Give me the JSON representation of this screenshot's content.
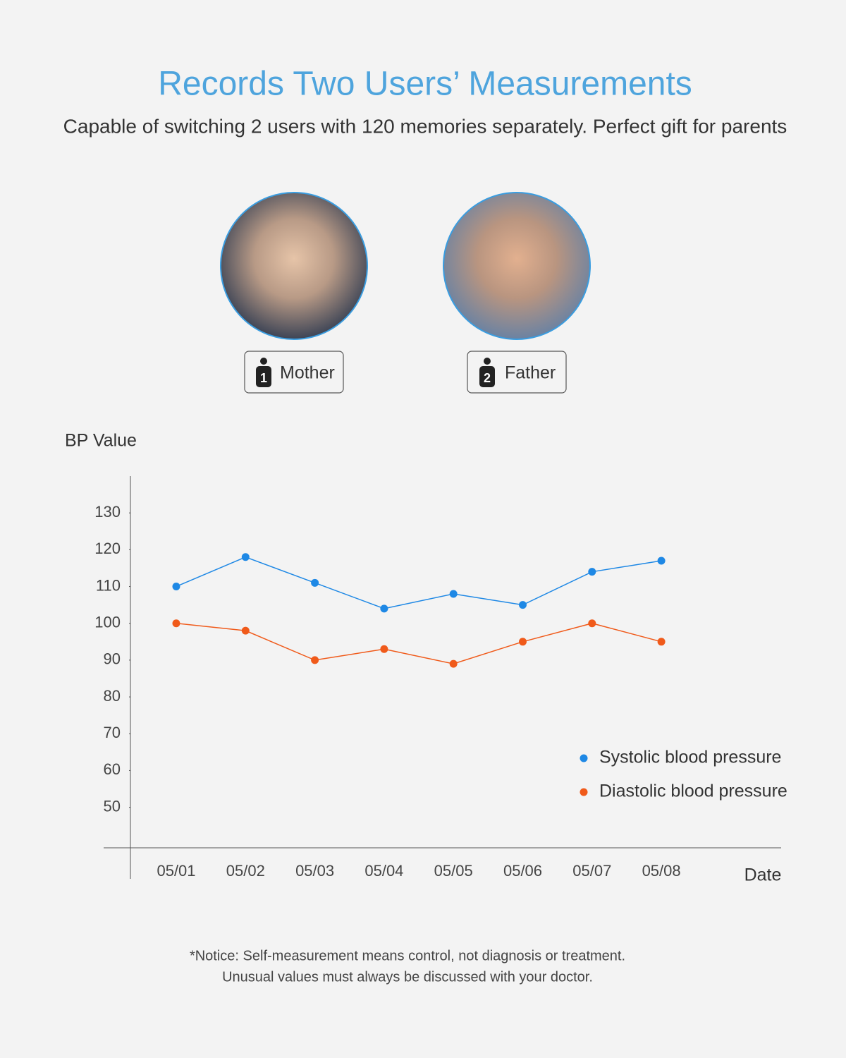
{
  "header": {
    "title": "Records Two Users’ Measurements",
    "subtitle": "Capable of switching 2 users with 120 memories separately. Perfect gift for parents"
  },
  "users": [
    "Mother",
    "Father"
  ],
  "chart_data": {
    "type": "line",
    "y_label": "BP Value",
    "x_label": "Date",
    "categories": [
      "05/01",
      "05/02",
      "05/03",
      "05/04",
      "05/05",
      "05/06",
      "05/07",
      "05/08"
    ],
    "series": [
      {
        "name": "Systolic blood pressure",
        "color": "#1e88e5",
        "values": [
          110,
          118,
          111,
          104,
          108,
          105,
          114,
          117
        ]
      },
      {
        "name": "Diastolic blood pressure",
        "color": "#f05a1a",
        "values": [
          100,
          98,
          90,
          93,
          89,
          95,
          100,
          95
        ]
      }
    ],
    "ylim": [
      39,
      140
    ],
    "yticks": [
      50,
      60,
      70,
      80,
      90,
      100,
      110,
      120,
      130
    ],
    "grid": false,
    "legend": "lower right"
  },
  "notice": [
    "*Notice: Self-measurement means control, not diagnosis or treatment.",
    "Unusual values must always be discussed with your doctor."
  ]
}
